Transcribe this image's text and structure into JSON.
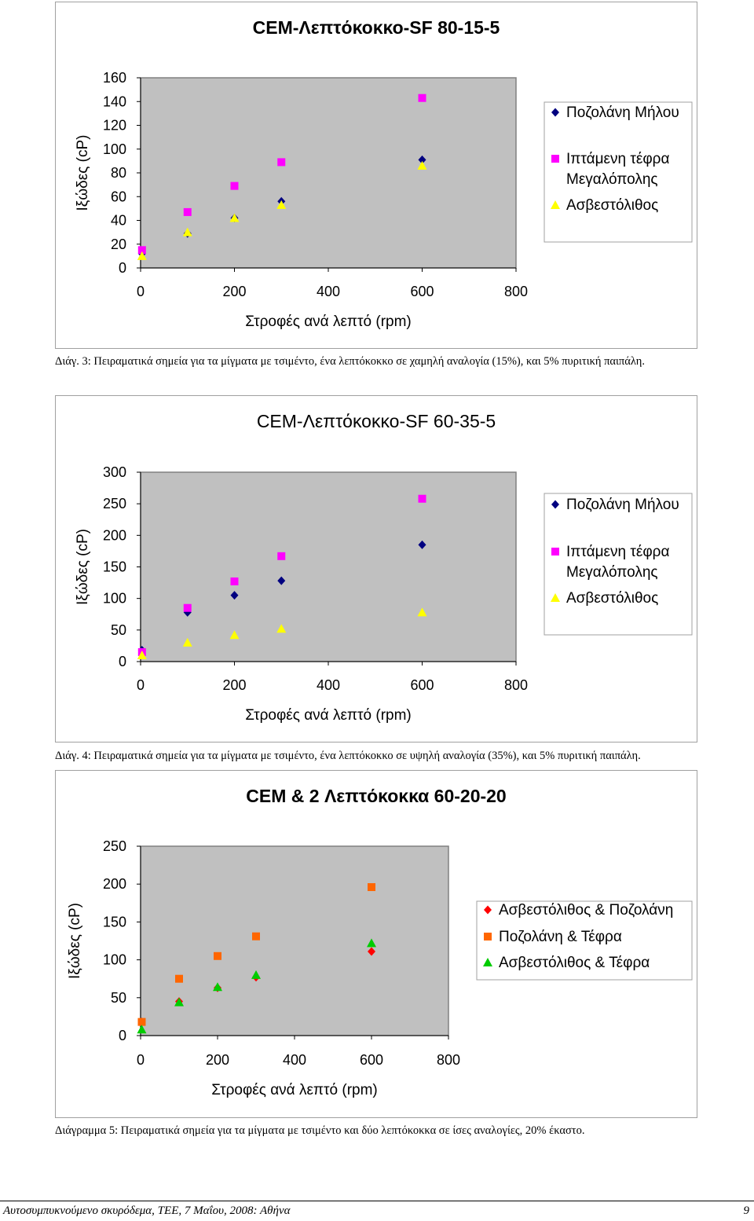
{
  "chart_data": [
    {
      "type": "scatter",
      "title": "CEM-Λεπτόκοκκο-SF  80-15-5",
      "xlabel": "Στροφές ανά λεπτό (rpm)",
      "ylabel": "Ιξώδες (cP)",
      "xlim": [
        0,
        800
      ],
      "ylim": [
        0,
        160
      ],
      "xticks": [
        "0",
        "200",
        "400",
        "600",
        "800"
      ],
      "yticks": [
        "0",
        "20",
        "40",
        "60",
        "80",
        "100",
        "120",
        "140",
        "160"
      ],
      "legend_position": "right",
      "series": [
        {
          "name": "Ποζολάνη Μήλου",
          "marker": "diamond",
          "color": "#000080",
          "x": [
            3,
            100,
            200,
            300,
            600
          ],
          "y": [
            12,
            29,
            42,
            56,
            91
          ]
        },
        {
          "name": "Ιπτάμενη τέφρα Μεγαλόπολης",
          "marker": "square",
          "color": "#ff00ff",
          "x": [
            3,
            100,
            200,
            300,
            600
          ],
          "y": [
            15,
            47,
            69,
            89,
            143
          ]
        },
        {
          "name": "Ασβεστόλιθος",
          "marker": "triangle",
          "color": "#ffff00",
          "x": [
            3,
            100,
            200,
            300,
            600
          ],
          "y": [
            10,
            30,
            42,
            53,
            86
          ]
        }
      ]
    },
    {
      "type": "scatter",
      "title": "CEM-Λεπτόκοκκο-SF  60-35-5",
      "xlabel": "Στροφές ανά λεπτό (rpm)",
      "ylabel": "Ιξώδες (cP)",
      "xlim": [
        0,
        800
      ],
      "ylim": [
        0,
        300
      ],
      "xticks": [
        "0",
        "200",
        "400",
        "600",
        "800"
      ],
      "yticks": [
        "0",
        "50",
        "100",
        "150",
        "200",
        "250",
        "300"
      ],
      "legend_position": "right",
      "series": [
        {
          "name": "Ποζολάνη Μήλου",
          "marker": "diamond",
          "color": "#000080",
          "x": [
            3,
            100,
            200,
            300,
            600
          ],
          "y": [
            18,
            78,
            105,
            128,
            185
          ]
        },
        {
          "name": "Ιπτάμενη τέφρα Μεγαλόπολης",
          "marker": "square",
          "color": "#ff00ff",
          "x": [
            3,
            100,
            200,
            300,
            600
          ],
          "y": [
            15,
            85,
            127,
            167,
            258
          ]
        },
        {
          "name": "Ασβεστόλιθος",
          "marker": "triangle",
          "color": "#ffff00",
          "x": [
            3,
            100,
            200,
            300,
            600
          ],
          "y": [
            10,
            30,
            42,
            52,
            78
          ]
        }
      ]
    },
    {
      "type": "scatter",
      "title": "CEM & 2 Λεπτόκοκκα  60-20-20",
      "xlabel": "Στροφές ανά λεπτό (rpm)",
      "ylabel": "Ιξώδες (cP)",
      "xlim": [
        0,
        800
      ],
      "ylim": [
        0,
        250
      ],
      "xticks": [
        "0",
        "200",
        "400",
        "600",
        "800"
      ],
      "yticks": [
        "0",
        "50",
        "100",
        "150",
        "200",
        "250"
      ],
      "legend_position": "right",
      "series": [
        {
          "name": "Ασβεστόλιθος & Ποζολάνη",
          "marker": "diamond",
          "color": "#ff0000",
          "x": [
            3,
            100,
            200,
            300,
            600
          ],
          "y": [
            18,
            45,
            63,
            77,
            111
          ]
        },
        {
          "name": "Ποζολάνη & Τέφρα",
          "marker": "square",
          "color": "#ff6600",
          "x": [
            3,
            100,
            200,
            300,
            600
          ],
          "y": [
            18,
            75,
            105,
            131,
            196
          ]
        },
        {
          "name": "Ασβεστόλιθος & Τέφρα",
          "marker": "triangle",
          "color": "#00cc00",
          "x": [
            3,
            100,
            200,
            300,
            600
          ],
          "y": [
            8,
            44,
            64,
            80,
            122
          ]
        }
      ]
    }
  ],
  "captions": [
    "Διάγ. 3: Πειραματικά σημεία για τα μίγματα με τσιμέντο, ένα λεπτόκοκκο σε χαμηλή αναλογία (15%), και 5% πυριτική παιπάλη.",
    "Διάγ. 4: Πειραματικά σημεία για τα μίγματα με τσιμέντο, ένα λεπτόκοκκο σε υψηλή αναλογία (35%), και 5% πυριτική παιπάλη.",
    "Διάγραμμα 5: Πειραματικά σημεία για τα μίγματα με τσιμέντο και δύο λεπτόκοκκα σε ίσες αναλογίες, 20% έκαστο."
  ],
  "footer": {
    "left": "Αυτοσυμπυκνούμενο σκυρόδεμα, ΤΕΕ, 7 Μαΐου, 2008: Αθήνα",
    "right": "9"
  },
  "colors": {
    "plot_bg": "#c0c0c0",
    "frame": "#808080"
  }
}
